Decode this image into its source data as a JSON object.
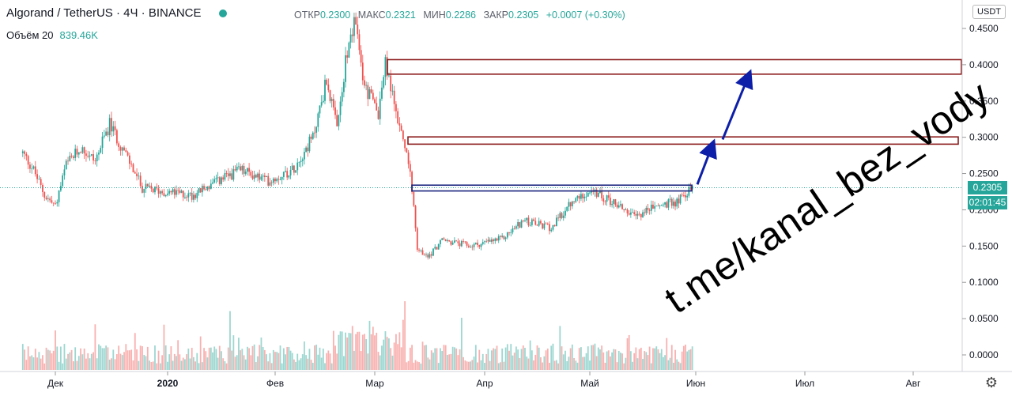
{
  "header": {
    "symbol": "Algorand / TetherUS",
    "interval": "4Ч",
    "exchange": "BINANCE",
    "open_label": "ОТКР",
    "open_value": "0.2300",
    "high_label": "МАКС",
    "high_value": "0.2321",
    "low_label": "МИН",
    "low_value": "0.2286",
    "close_label": "ЗАКР",
    "close_value": "0.2305",
    "change": "+0.0007 (+0.30%)"
  },
  "volume": {
    "label": "Объём 20",
    "value": "839.46K"
  },
  "currency": "USDT",
  "current_price": "0.2305",
  "countdown": "02:01:45",
  "watermark": "t.me/kanal_bez_vody",
  "colors": {
    "up": "#26a69a",
    "down": "#ef5350",
    "zone_red": "#8b1a1a",
    "zone_blue": "#1a237e",
    "arrow": "#0d1fa8"
  },
  "chart_data": {
    "type": "candlestick",
    "x_tick_labels": [
      "Дек",
      "2020",
      "Фев",
      "Мар",
      "Апр",
      "Май",
      "Июн",
      "Июл",
      "Авг"
    ],
    "y_ticks": [
      "0.4500",
      "0.4000",
      "0.3500",
      "0.3000",
      "0.2500",
      "0.2000",
      "0.1500",
      "0.1000",
      "0.0500",
      "0.0000"
    ],
    "ylim": [
      -0.01,
      0.475
    ],
    "price_path": [
      {
        "x": "Ноя 22",
        "y": 0.278
      },
      {
        "x": "Ноя 25",
        "y": 0.255
      },
      {
        "x": "Ноя 28",
        "y": 0.22
      },
      {
        "x": "Дек 1",
        "y": 0.205
      },
      {
        "x": "Дек 4",
        "y": 0.262
      },
      {
        "x": "Дек 8",
        "y": 0.285
      },
      {
        "x": "Дек 12",
        "y": 0.268
      },
      {
        "x": "Дек 16",
        "y": 0.318
      },
      {
        "x": "Дек 20",
        "y": 0.28
      },
      {
        "x": "Дек 25",
        "y": 0.23
      },
      {
        "x": "Дек 31",
        "y": 0.225
      },
      {
        "x": "Янв 8",
        "y": 0.22
      },
      {
        "x": "Янв 15",
        "y": 0.238
      },
      {
        "x": "Янв 22",
        "y": 0.255
      },
      {
        "x": "Янв 30",
        "y": 0.24
      },
      {
        "x": "Фев 6",
        "y": 0.255
      },
      {
        "x": "Фев 12",
        "y": 0.3
      },
      {
        "x": "Фев 16",
        "y": 0.38
      },
      {
        "x": "Фев 19",
        "y": 0.31
      },
      {
        "x": "Фев 22",
        "y": 0.42
      },
      {
        "x": "Фев 24",
        "y": 0.462
      },
      {
        "x": "Фев 27",
        "y": 0.37
      },
      {
        "x": "Мар 2",
        "y": 0.335
      },
      {
        "x": "Мар 4",
        "y": 0.4
      },
      {
        "x": "Мар 8",
        "y": 0.315
      },
      {
        "x": "Мар 11",
        "y": 0.26
      },
      {
        "x": "Мар 13",
        "y": 0.145
      },
      {
        "x": "Мар 16",
        "y": 0.135
      },
      {
        "x": "Мар 20",
        "y": 0.158
      },
      {
        "x": "Мар 28",
        "y": 0.15
      },
      {
        "x": "Апр 6",
        "y": 0.16
      },
      {
        "x": "Апр 12",
        "y": 0.185
      },
      {
        "x": "Апр 20",
        "y": 0.175
      },
      {
        "x": "Апр 25",
        "y": 0.205
      },
      {
        "x": "Апр 30",
        "y": 0.225
      },
      {
        "x": "Май 4",
        "y": 0.22
      },
      {
        "x": "Май 10",
        "y": 0.205
      },
      {
        "x": "Май 14",
        "y": 0.19
      },
      {
        "x": "Май 20",
        "y": 0.205
      },
      {
        "x": "Май 26",
        "y": 0.21
      },
      {
        "x": "Май 31",
        "y": 0.2305
      }
    ],
    "zones": [
      {
        "color": "red",
        "from": 0.387,
        "to": 0.407
      },
      {
        "color": "red",
        "from": 0.2905,
        "to": 0.3005
      },
      {
        "color": "blue",
        "from": 0.226,
        "to": 0.234
      }
    ]
  }
}
